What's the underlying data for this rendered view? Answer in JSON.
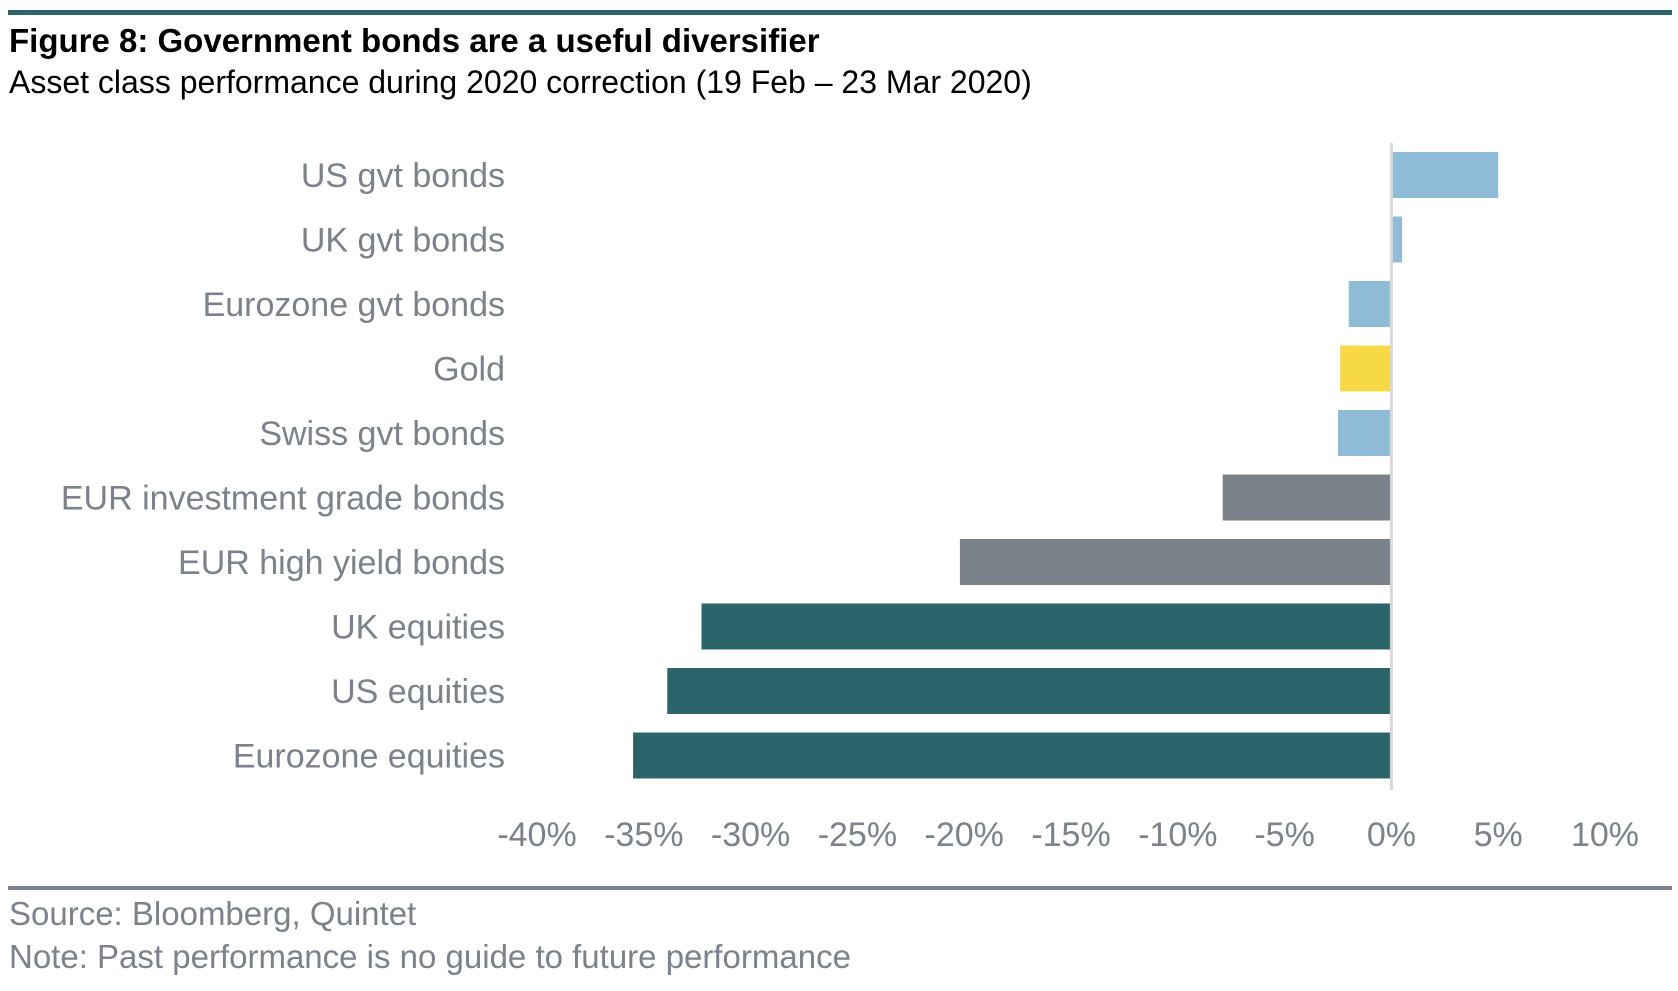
{
  "header": {
    "title": "Figure 8: Government bonds are a useful diversifier",
    "subtitle": "Asset class performance during 2020 correction (19 Feb – 23 Mar 2020)"
  },
  "footer": {
    "source": "Source: Bloomberg, Quintet",
    "note": "Note: Past performance is no guide to future performance"
  },
  "colors": {
    "accent_rule": "#2b6469",
    "footer_rule": "#7b828c",
    "label_text": "#7b828c",
    "zero_line": "#d9d9d9"
  },
  "chart_data": {
    "type": "bar",
    "orientation": "horizontal",
    "title": "Figure 8: Government bonds are a useful diversifier",
    "subtitle": "Asset class performance during 2020 correction (19 Feb – 23 Mar 2020)",
    "xlabel": "",
    "ylabel": "",
    "categories": [
      "US gvt bonds",
      "UK gvt bonds",
      "Eurozone gvt bonds",
      "Gold",
      "Swiss gvt bonds",
      "EUR investment grade bonds",
      "EUR high yield bonds",
      "UK equities",
      "US equities",
      "Eurozone equities"
    ],
    "values": [
      5.0,
      0.5,
      -2.0,
      -2.4,
      -2.5,
      -7.9,
      -20.2,
      -32.3,
      -33.9,
      -35.5
    ],
    "bar_colors": [
      "#8fbdd7",
      "#8fbdd7",
      "#8fbdd7",
      "#f7d946",
      "#8fbdd7",
      "#7b828c",
      "#7b828c",
      "#2b6469",
      "#2b6469",
      "#2b6469"
    ],
    "xlim": [
      -40,
      10
    ],
    "xticks": [
      -40,
      -35,
      -30,
      -25,
      -20,
      -15,
      -10,
      -5,
      0,
      5,
      10
    ],
    "xtick_labels": [
      "-40%",
      "-35%",
      "-30%",
      "-25%",
      "-20%",
      "-15%",
      "-10%",
      "-5%",
      "0%",
      "5%",
      "10%"
    ],
    "unit": "%",
    "grid": false,
    "legend": "none"
  }
}
